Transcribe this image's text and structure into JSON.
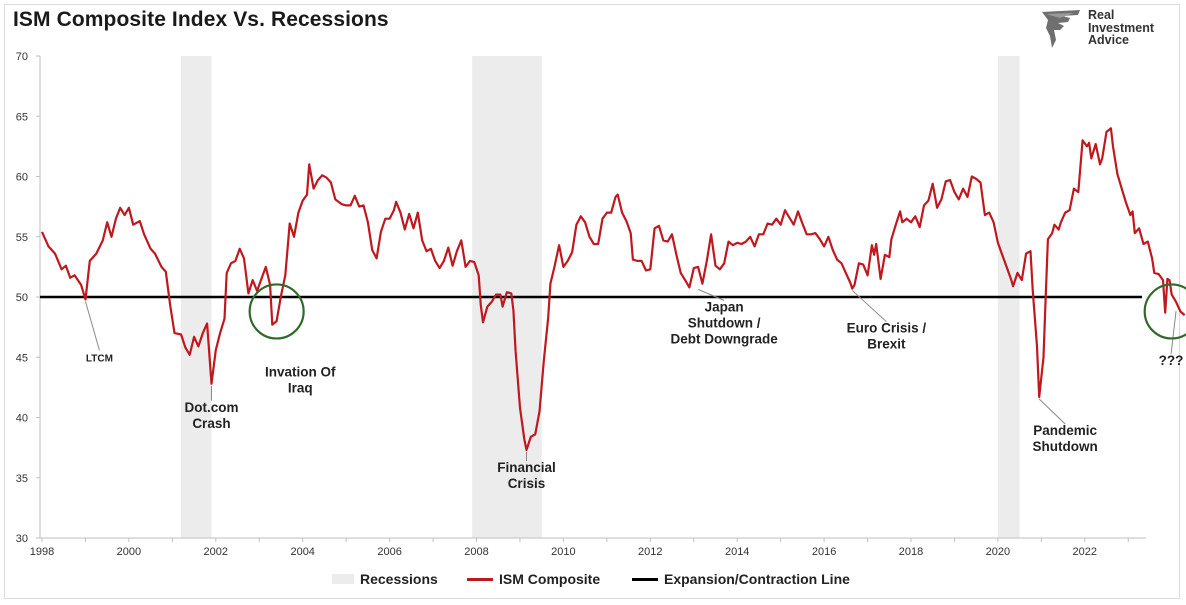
{
  "chart_data": {
    "type": "line",
    "title": "ISM Composite Index Vs. Recessions",
    "xlim": [
      1998.0,
      2023.6
    ],
    "ylim": [
      30,
      70
    ],
    "yticks": [
      30,
      35,
      40,
      45,
      50,
      55,
      60,
      65,
      70
    ],
    "xticks": [
      1998,
      2000,
      2002,
      2004,
      2006,
      2008,
      2010,
      2012,
      2014,
      2016,
      2018,
      2020,
      2022
    ],
    "expansion_contraction_level": 50,
    "grid": false,
    "legend": {
      "placement": "bottom",
      "items": [
        {
          "label": "Recessions",
          "color": "#ececec"
        },
        {
          "label": "ISM Composite",
          "color": "#c0181f"
        },
        {
          "label": "Expansion/Contraction Line",
          "color": "#000000"
        }
      ]
    },
    "recessions": [
      {
        "start": 2001.2,
        "end": 2001.9
      },
      {
        "start": 2007.9,
        "end": 2009.5
      },
      {
        "start": 2020.0,
        "end": 2020.5
      }
    ],
    "series": [
      {
        "name": "ISM Composite",
        "points": [
          [
            1998.0,
            55.4
          ],
          [
            1998.15,
            54.2
          ],
          [
            1998.3,
            53.6
          ],
          [
            1998.45,
            52.3
          ],
          [
            1998.55,
            52.6
          ],
          [
            1998.65,
            51.6
          ],
          [
            1998.75,
            51.8
          ],
          [
            1998.9,
            51.0
          ],
          [
            1999.0,
            49.8
          ],
          [
            1999.1,
            53.0
          ],
          [
            1999.25,
            53.6
          ],
          [
            1999.4,
            54.7
          ],
          [
            1999.5,
            56.2
          ],
          [
            1999.6,
            55.0
          ],
          [
            1999.7,
            56.5
          ],
          [
            1999.8,
            57.4
          ],
          [
            1999.9,
            56.8
          ],
          [
            2000.0,
            57.4
          ],
          [
            2000.1,
            56.0
          ],
          [
            2000.25,
            56.3
          ],
          [
            2000.35,
            55.2
          ],
          [
            2000.5,
            54.0
          ],
          [
            2000.6,
            53.6
          ],
          [
            2000.75,
            52.5
          ],
          [
            2000.85,
            52.1
          ],
          [
            2000.95,
            49.3
          ],
          [
            2001.05,
            47.0
          ],
          [
            2001.2,
            46.9
          ],
          [
            2001.3,
            45.8
          ],
          [
            2001.4,
            45.2
          ],
          [
            2001.5,
            46.7
          ],
          [
            2001.6,
            45.9
          ],
          [
            2001.7,
            47.0
          ],
          [
            2001.8,
            47.8
          ],
          [
            2001.9,
            42.8
          ],
          [
            2002.0,
            45.6
          ],
          [
            2002.1,
            47.0
          ],
          [
            2002.2,
            48.2
          ],
          [
            2002.25,
            52.0
          ],
          [
            2002.35,
            52.8
          ],
          [
            2002.45,
            53.0
          ],
          [
            2002.55,
            54.0
          ],
          [
            2002.65,
            53.2
          ],
          [
            2002.75,
            50.3
          ],
          [
            2002.85,
            51.4
          ],
          [
            2002.95,
            50.5
          ],
          [
            2003.05,
            51.5
          ],
          [
            2003.15,
            52.5
          ],
          [
            2003.25,
            51.0
          ],
          [
            2003.3,
            47.7
          ],
          [
            2003.4,
            48.0
          ],
          [
            2003.5,
            50.1
          ],
          [
            2003.6,
            51.8
          ],
          [
            2003.7,
            56.1
          ],
          [
            2003.8,
            55.0
          ],
          [
            2003.9,
            57.0
          ],
          [
            2004.0,
            58.0
          ],
          [
            2004.1,
            58.5
          ],
          [
            2004.15,
            61.0
          ],
          [
            2004.25,
            59.0
          ],
          [
            2004.35,
            59.7
          ],
          [
            2004.45,
            60.1
          ],
          [
            2004.55,
            59.9
          ],
          [
            2004.65,
            59.5
          ],
          [
            2004.75,
            58.1
          ],
          [
            2004.9,
            57.7
          ],
          [
            2005.0,
            57.6
          ],
          [
            2005.1,
            57.6
          ],
          [
            2005.2,
            58.4
          ],
          [
            2005.3,
            57.5
          ],
          [
            2005.4,
            57.6
          ],
          [
            2005.5,
            56.2
          ],
          [
            2005.6,
            53.9
          ],
          [
            2005.7,
            53.2
          ],
          [
            2005.8,
            55.4
          ],
          [
            2005.9,
            56.5
          ],
          [
            2006.0,
            56.5
          ],
          [
            2006.1,
            57.2
          ],
          [
            2006.15,
            57.9
          ],
          [
            2006.25,
            57.0
          ],
          [
            2006.35,
            55.6
          ],
          [
            2006.45,
            56.9
          ],
          [
            2006.55,
            55.7
          ],
          [
            2006.65,
            57.0
          ],
          [
            2006.75,
            54.7
          ],
          [
            2006.85,
            53.8
          ],
          [
            2006.95,
            54.0
          ],
          [
            2007.05,
            53.0
          ],
          [
            2007.15,
            52.4
          ],
          [
            2007.25,
            53.0
          ],
          [
            2007.35,
            54.1
          ],
          [
            2007.45,
            52.6
          ],
          [
            2007.55,
            53.8
          ],
          [
            2007.65,
            54.7
          ],
          [
            2007.75,
            52.5
          ],
          [
            2007.85,
            53.0
          ],
          [
            2007.95,
            52.9
          ],
          [
            2008.05,
            51.8
          ],
          [
            2008.1,
            49.3
          ],
          [
            2008.15,
            47.9
          ],
          [
            2008.25,
            49.2
          ],
          [
            2008.35,
            49.6
          ],
          [
            2008.45,
            50.2
          ],
          [
            2008.55,
            50.2
          ],
          [
            2008.6,
            49.2
          ],
          [
            2008.7,
            50.4
          ],
          [
            2008.8,
            50.3
          ],
          [
            2008.85,
            48.9
          ],
          [
            2008.9,
            45.5
          ],
          [
            2009.0,
            40.8
          ],
          [
            2009.1,
            38.2
          ],
          [
            2009.15,
            37.3
          ],
          [
            2009.25,
            38.4
          ],
          [
            2009.35,
            38.6
          ],
          [
            2009.45,
            40.5
          ],
          [
            2009.55,
            44.7
          ],
          [
            2009.65,
            48.3
          ],
          [
            2009.7,
            51.1
          ],
          [
            2009.8,
            52.6
          ],
          [
            2009.9,
            54.3
          ],
          [
            2010.0,
            52.5
          ],
          [
            2010.1,
            53.0
          ],
          [
            2010.2,
            53.7
          ],
          [
            2010.3,
            56.0
          ],
          [
            2010.4,
            56.7
          ],
          [
            2010.5,
            56.2
          ],
          [
            2010.6,
            55.0
          ],
          [
            2010.7,
            54.4
          ],
          [
            2010.8,
            54.4
          ],
          [
            2010.9,
            56.5
          ],
          [
            2011.0,
            57.0
          ],
          [
            2011.1,
            57.0
          ],
          [
            2011.2,
            58.3
          ],
          [
            2011.25,
            58.5
          ],
          [
            2011.35,
            57.0
          ],
          [
            2011.45,
            56.3
          ],
          [
            2011.55,
            55.3
          ],
          [
            2011.6,
            53.1
          ],
          [
            2011.7,
            53.0
          ],
          [
            2011.8,
            53.0
          ],
          [
            2011.9,
            52.2
          ],
          [
            2012.0,
            52.3
          ],
          [
            2012.1,
            55.7
          ],
          [
            2012.2,
            55.9
          ],
          [
            2012.3,
            54.7
          ],
          [
            2012.4,
            54.6
          ],
          [
            2012.5,
            55.2
          ],
          [
            2012.6,
            53.5
          ],
          [
            2012.7,
            52.0
          ],
          [
            2012.8,
            51.4
          ],
          [
            2012.9,
            50.8
          ],
          [
            2013.0,
            52.4
          ],
          [
            2013.1,
            52.5
          ],
          [
            2013.2,
            51.1
          ],
          [
            2013.3,
            53.0
          ],
          [
            2013.4,
            55.2
          ],
          [
            2013.5,
            52.6
          ],
          [
            2013.6,
            52.3
          ],
          [
            2013.7,
            52.8
          ],
          [
            2013.8,
            54.6
          ],
          [
            2013.9,
            54.3
          ],
          [
            2014.0,
            54.5
          ],
          [
            2014.1,
            54.4
          ],
          [
            2014.2,
            54.6
          ],
          [
            2014.3,
            55.0
          ],
          [
            2014.4,
            54.2
          ],
          [
            2014.5,
            55.2
          ],
          [
            2014.6,
            55.2
          ],
          [
            2014.7,
            56.1
          ],
          [
            2014.8,
            56.0
          ],
          [
            2014.9,
            56.5
          ],
          [
            2015.0,
            56.0
          ],
          [
            2015.1,
            57.2
          ],
          [
            2015.2,
            56.6
          ],
          [
            2015.3,
            56.0
          ],
          [
            2015.4,
            57.1
          ],
          [
            2015.5,
            56.1
          ],
          [
            2015.6,
            55.2
          ],
          [
            2015.7,
            55.2
          ],
          [
            2015.8,
            55.3
          ],
          [
            2015.9,
            54.8
          ],
          [
            2016.0,
            54.2
          ],
          [
            2016.1,
            55.0
          ],
          [
            2016.2,
            53.9
          ],
          [
            2016.3,
            53.1
          ],
          [
            2016.4,
            52.8
          ],
          [
            2016.5,
            52.0
          ],
          [
            2016.6,
            51.2
          ],
          [
            2016.65,
            50.7
          ],
          [
            2016.7,
            51.0
          ],
          [
            2016.8,
            52.8
          ],
          [
            2016.9,
            52.7
          ],
          [
            2017.0,
            51.8
          ],
          [
            2017.1,
            54.3
          ],
          [
            2017.15,
            53.5
          ],
          [
            2017.2,
            54.4
          ],
          [
            2017.3,
            51.5
          ],
          [
            2017.4,
            53.5
          ],
          [
            2017.5,
            53.3
          ],
          [
            2017.55,
            54.8
          ],
          [
            2017.65,
            56.0
          ],
          [
            2017.75,
            57.1
          ],
          [
            2017.8,
            56.2
          ],
          [
            2017.9,
            56.5
          ],
          [
            2018.0,
            56.2
          ],
          [
            2018.1,
            56.7
          ],
          [
            2018.2,
            55.8
          ],
          [
            2018.3,
            57.6
          ],
          [
            2018.4,
            58.0
          ],
          [
            2018.5,
            59.4
          ],
          [
            2018.6,
            57.4
          ],
          [
            2018.7,
            58.1
          ],
          [
            2018.8,
            59.6
          ],
          [
            2018.9,
            59.7
          ],
          [
            2019.0,
            58.7
          ],
          [
            2019.1,
            58.1
          ],
          [
            2019.2,
            59.0
          ],
          [
            2019.3,
            58.3
          ],
          [
            2019.4,
            60.0
          ],
          [
            2019.5,
            59.8
          ],
          [
            2019.6,
            59.5
          ],
          [
            2019.7,
            56.8
          ],
          [
            2019.8,
            57.0
          ],
          [
            2019.9,
            56.2
          ],
          [
            2020.0,
            54.5
          ],
          [
            2020.1,
            53.5
          ],
          [
            2020.2,
            52.5
          ],
          [
            2020.3,
            51.5
          ],
          [
            2020.35,
            50.9
          ],
          [
            2020.45,
            52.0
          ],
          [
            2020.55,
            51.4
          ],
          [
            2020.65,
            53.6
          ],
          [
            2020.75,
            53.8
          ],
          [
            2020.8,
            50.6
          ],
          [
            2020.9,
            45.9
          ],
          [
            2020.95,
            41.7
          ],
          [
            2021.05,
            45.0
          ],
          [
            2021.1,
            50.0
          ],
          [
            2021.15,
            54.8
          ],
          [
            2021.25,
            55.3
          ],
          [
            2021.3,
            56.0
          ],
          [
            2021.4,
            55.6
          ],
          [
            2021.45,
            56.2
          ],
          [
            2021.55,
            57.0
          ],
          [
            2021.65,
            57.2
          ],
          [
            2021.75,
            59.0
          ],
          [
            2021.85,
            58.7
          ],
          [
            2021.95,
            63.0
          ],
          [
            2022.05,
            62.5
          ],
          [
            2022.1,
            62.8
          ],
          [
            2022.15,
            61.5
          ],
          [
            2022.25,
            62.7
          ],
          [
            2022.35,
            61.0
          ],
          [
            2022.4,
            61.5
          ],
          [
            2022.5,
            63.7
          ],
          [
            2022.6,
            64.0
          ],
          [
            2022.65,
            62.5
          ],
          [
            2022.75,
            60.2
          ],
          [
            2022.85,
            59.0
          ],
          [
            2022.95,
            57.8
          ],
          [
            2023.05,
            56.8
          ],
          [
            2023.1,
            57.1
          ],
          [
            2023.15,
            55.3
          ],
          [
            2023.25,
            55.7
          ],
          [
            2023.35,
            54.4
          ],
          [
            2023.45,
            54.6
          ],
          [
            2023.55,
            53.2
          ],
          [
            2023.6,
            52.0
          ],
          [
            2023.7,
            51.9
          ],
          [
            2023.8,
            51.4
          ],
          [
            2023.85,
            48.7
          ],
          [
            2023.9,
            51.5
          ],
          [
            2023.95,
            51.4
          ],
          [
            2024.0,
            50.2
          ],
          [
            2024.1,
            49.6
          ],
          [
            2024.2,
            48.8
          ],
          [
            2024.3,
            48.5
          ]
        ]
      }
    ],
    "annotations": [
      {
        "text": "LTCM",
        "x": 1999.0,
        "y": 49.8,
        "size": "small"
      },
      {
        "text": "Dot.com\nCrash",
        "x": 2001.9,
        "y": 42.8
      },
      {
        "text": "Invation Of\nIraq",
        "x": 2003.3,
        "y": 47.7
      },
      {
        "text": "Financial\nCrisis",
        "x": 2009.15,
        "y": 37.3
      },
      {
        "text": "Japan\nShutdown /\nDebt Downgrade",
        "x": 2013.1,
        "y": 50.8
      },
      {
        "text": "Euro Crisis /\nBrexit",
        "x": 2016.65,
        "y": 50.7
      },
      {
        "text": "Pandemic\nShutdown",
        "x": 2020.95,
        "y": 41.7
      },
      {
        "text": "???",
        "x": 2024.1,
        "y": 49.0
      }
    ],
    "circles": [
      {
        "x": 2003.4,
        "y": 48.8
      },
      {
        "x": 2024.0,
        "y": 48.8
      }
    ]
  },
  "logo": {
    "line1": "Real",
    "line2": "Investment",
    "line3": "Advice"
  }
}
